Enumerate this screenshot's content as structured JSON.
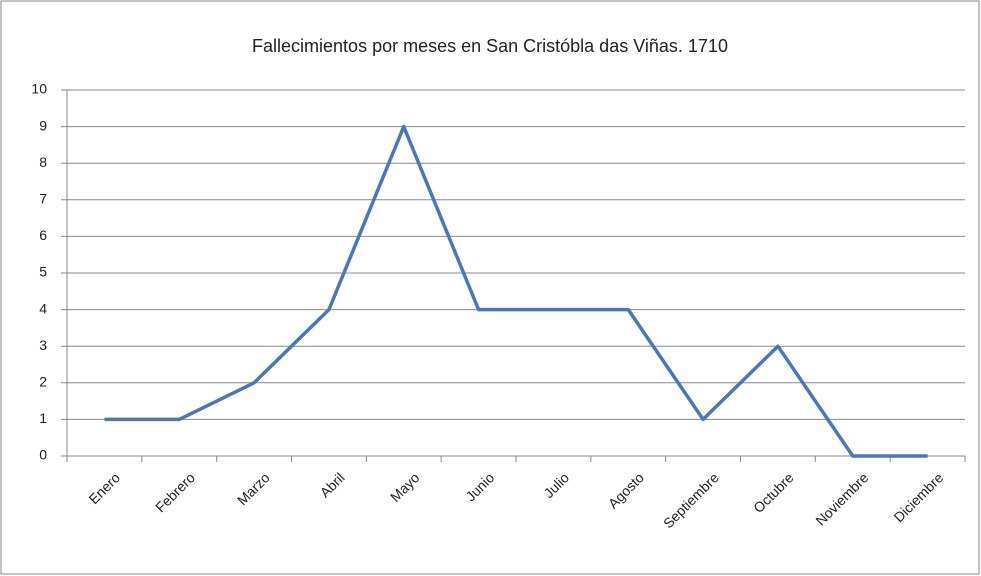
{
  "chart_data": {
    "type": "line",
    "title": "Fallecimientos por meses en San Cristóbla das Viñas. 1710",
    "categories": [
      "Enero",
      "Febrero",
      "Marzo",
      "Abril",
      "Mayo",
      "Junio",
      "Julio",
      "Agosto",
      "Septiembre",
      "Octubre",
      "Noviembre",
      "Diciembre"
    ],
    "series": [
      {
        "name": "Fallecimientos",
        "color": "#4a76bd",
        "values": [
          1,
          1,
          2,
          4,
          9,
          4,
          4,
          4,
          1,
          3,
          0,
          0
        ]
      }
    ],
    "ylim": [
      0,
      10
    ],
    "yticks": [
      0,
      1,
      2,
      3,
      4,
      5,
      6,
      7,
      8,
      9,
      10
    ],
    "grid": true
  }
}
